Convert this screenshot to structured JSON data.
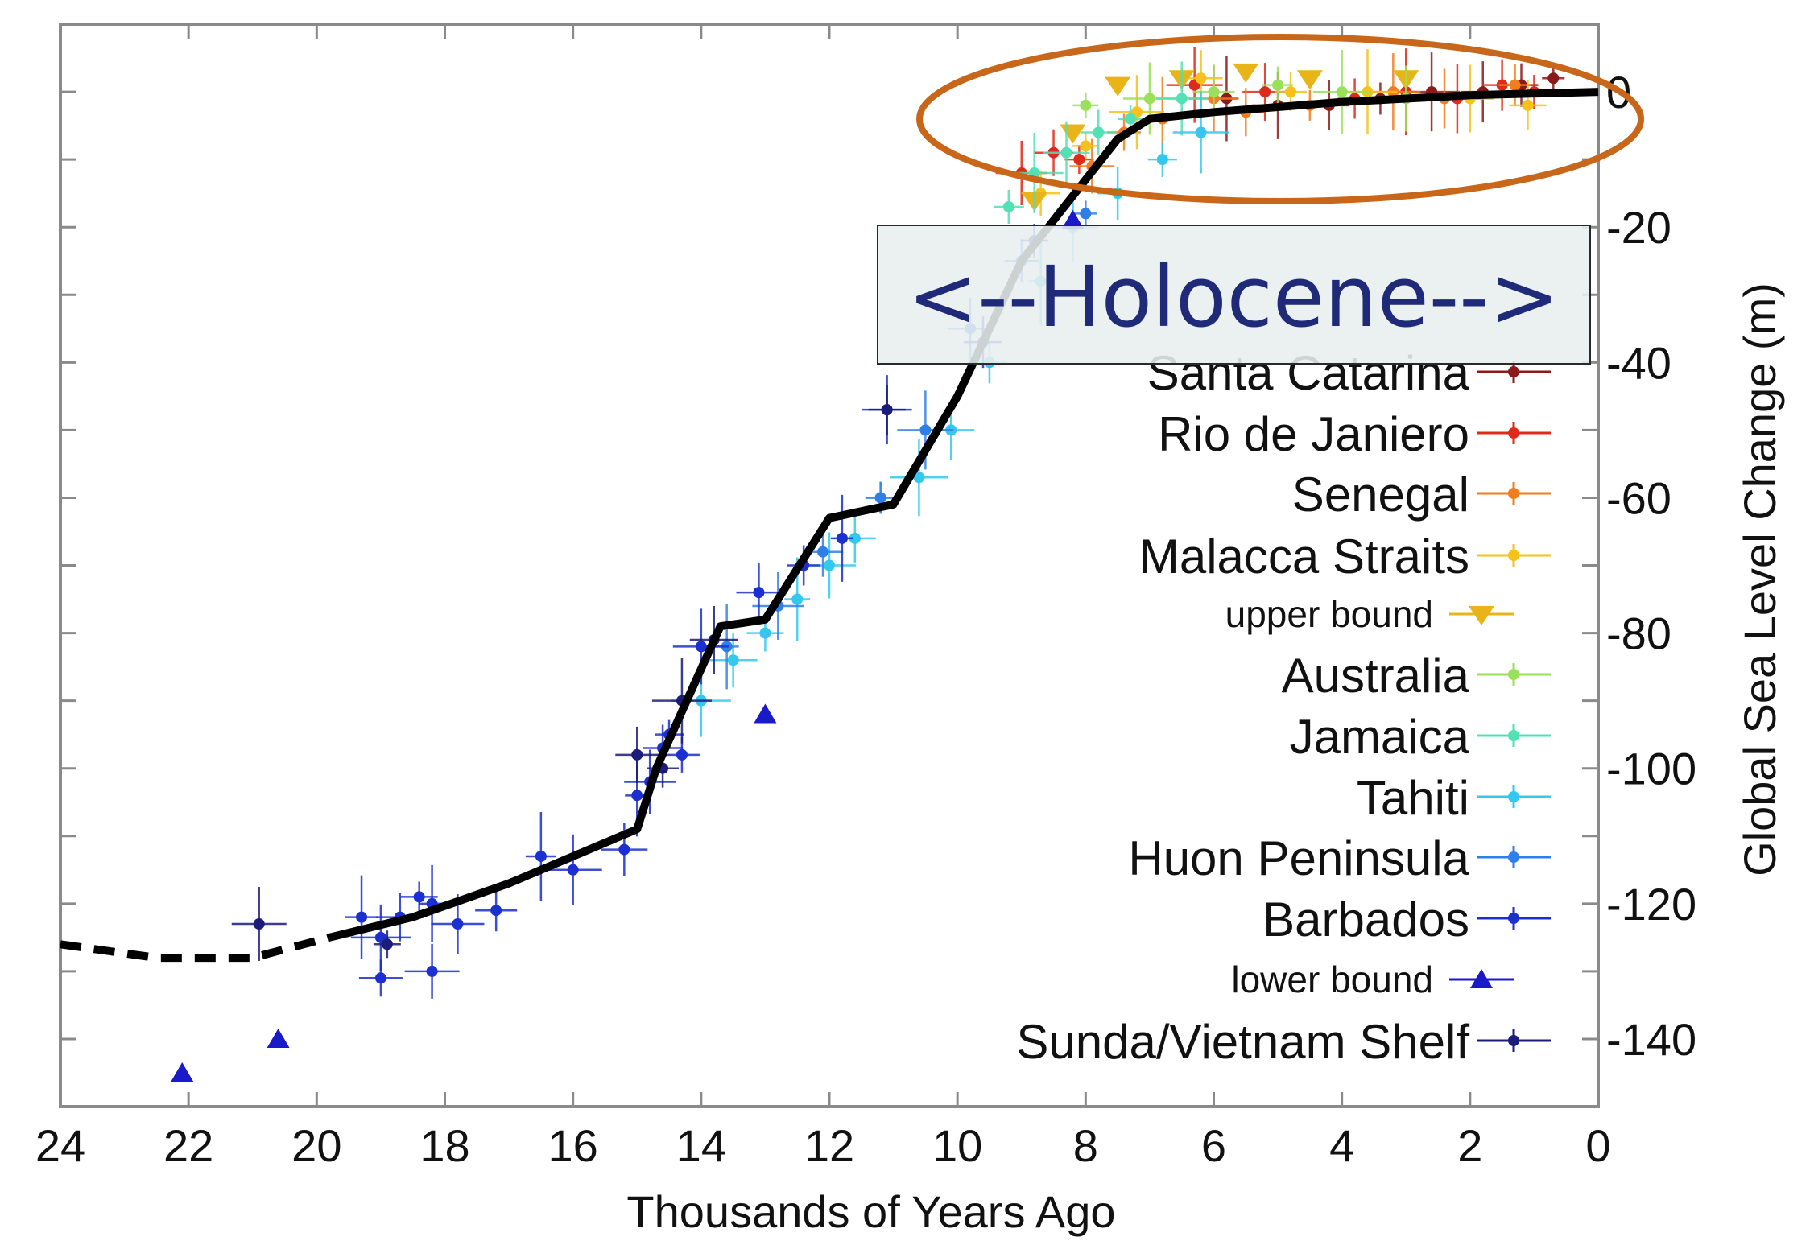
{
  "chart_data": {
    "type": "scatter",
    "xlabel": "Thousands of Years Ago",
    "ylabel": "Global Sea Level Change (m)",
    "xlim": [
      24,
      0
    ],
    "ylim": [
      -150,
      10
    ],
    "x_ticks": [
      24,
      22,
      20,
      18,
      16,
      14,
      12,
      10,
      8,
      6,
      4,
      2,
      0
    ],
    "y_ticks": [
      0,
      -20,
      -40,
      -60,
      -80,
      -100,
      -120,
      -140
    ],
    "y_tick_labels": [
      "0",
      "-20",
      "-40",
      "-60",
      "-80",
      "-100",
      "-120",
      "-140"
    ],
    "y_axis_side": "right",
    "grid": false,
    "legend_position": "right",
    "annotation": {
      "text": "<--Holocene-->",
      "ellipse_color": "#c8661a"
    },
    "reconstruction_line": {
      "color": "#000000",
      "dashed_points": [
        [
          24,
          -126
        ],
        [
          22.5,
          -128
        ],
        [
          21,
          -128
        ],
        [
          19.8,
          -125
        ]
      ],
      "solid_points": [
        [
          19.8,
          -125
        ],
        [
          18.5,
          -122
        ],
        [
          17,
          -117
        ],
        [
          16,
          -113
        ],
        [
          15,
          -109
        ],
        [
          14.7,
          -100
        ],
        [
          13.7,
          -79
        ],
        [
          13,
          -78
        ],
        [
          12,
          -63
        ],
        [
          11,
          -61
        ],
        [
          10,
          -45
        ],
        [
          9,
          -25
        ],
        [
          8,
          -13
        ],
        [
          7.5,
          -7
        ],
        [
          7,
          -4
        ],
        [
          6,
          -3
        ],
        [
          4,
          -1.5
        ],
        [
          2,
          -0.5
        ],
        [
          0,
          0
        ]
      ]
    },
    "series": [
      {
        "name": "Santa Catarina",
        "color": "#8b1a1a",
        "marker": "circle",
        "points": [
          [
            0.7,
            2
          ],
          [
            1.2,
            1
          ],
          [
            1.8,
            0
          ],
          [
            2.6,
            0
          ],
          [
            3.4,
            -1
          ],
          [
            4.2,
            -2
          ],
          [
            5.0,
            -2
          ],
          [
            5.8,
            -1
          ]
        ]
      },
      {
        "name": "Rio de Janiero",
        "color": "#dd2a1a",
        "marker": "circle",
        "points": [
          [
            1.0,
            0
          ],
          [
            1.5,
            1
          ],
          [
            2.2,
            -1
          ],
          [
            3.0,
            0
          ],
          [
            3.8,
            -1
          ],
          [
            5.2,
            0
          ],
          [
            6.3,
            1
          ],
          [
            8.1,
            -10
          ],
          [
            8.5,
            -9
          ],
          [
            9.0,
            -12
          ]
        ]
      },
      {
        "name": "Senegal",
        "color": "#f07d1e",
        "marker": "circle",
        "points": [
          [
            1.3,
            1
          ],
          [
            2.4,
            -1
          ],
          [
            3.2,
            0
          ],
          [
            4.5,
            -2
          ],
          [
            5.5,
            -3
          ],
          [
            6.0,
            -1
          ],
          [
            6.8,
            -4
          ],
          [
            7.4,
            -6
          ],
          [
            7.9,
            -11
          ]
        ]
      },
      {
        "name": "Malacca Straits",
        "color": "#f5c21a",
        "marker": "circle",
        "points": [
          [
            1.1,
            -2
          ],
          [
            2.0,
            -1
          ],
          [
            3.6,
            0
          ],
          [
            4.8,
            0
          ],
          [
            6.2,
            2
          ],
          [
            7.2,
            -3
          ],
          [
            8.0,
            -8
          ],
          [
            8.7,
            -15
          ]
        ]
      },
      {
        "name": "upper bound",
        "color": "#e8b417",
        "marker": "triangle-down",
        "points": [
          [
            3.0,
            2
          ],
          [
            4.5,
            2
          ],
          [
            5.5,
            3
          ],
          [
            6.5,
            2
          ],
          [
            7.5,
            1
          ],
          [
            8.2,
            -6
          ],
          [
            8.8,
            -16
          ]
        ]
      },
      {
        "name": "Australia",
        "color": "#9ae05a",
        "marker": "circle",
        "points": [
          [
            3.0,
            -1
          ],
          [
            4.0,
            0
          ],
          [
            5.0,
            1
          ],
          [
            6.0,
            0
          ],
          [
            7.0,
            -1
          ],
          [
            8.0,
            -2
          ]
        ]
      },
      {
        "name": "Jamaica",
        "color": "#52e0b4",
        "marker": "circle",
        "points": [
          [
            6.5,
            -1
          ],
          [
            7.3,
            -4
          ],
          [
            7.8,
            -6
          ],
          [
            8.3,
            -9
          ],
          [
            8.8,
            -12
          ],
          [
            9.2,
            -17
          ]
        ]
      },
      {
        "name": "Tahiti",
        "color": "#33c8ee",
        "marker": "circle",
        "points": [
          [
            6.2,
            -6
          ],
          [
            6.8,
            -10
          ],
          [
            7.5,
            -15
          ],
          [
            8.2,
            -20
          ],
          [
            8.7,
            -28
          ],
          [
            9.5,
            -40
          ],
          [
            10.1,
            -50
          ],
          [
            10.6,
            -57
          ],
          [
            11.2,
            -60
          ],
          [
            11.6,
            -66
          ],
          [
            12.0,
            -70
          ],
          [
            12.5,
            -75
          ],
          [
            13.0,
            -80
          ],
          [
            13.5,
            -84
          ],
          [
            14.0,
            -90
          ]
        ]
      },
      {
        "name": "Huon Peninsula",
        "color": "#2f7fe8",
        "marker": "circle",
        "points": [
          [
            8.0,
            -18
          ],
          [
            9.0,
            -25
          ],
          [
            9.8,
            -35
          ],
          [
            10.5,
            -50
          ],
          [
            11.2,
            -60
          ],
          [
            12.1,
            -68
          ],
          [
            12.8,
            -76
          ],
          [
            13.6,
            -82
          ]
        ]
      },
      {
        "name": "Barbados",
        "color": "#1c2fd0",
        "marker": "circle",
        "points": [
          [
            8.8,
            -22
          ],
          [
            9.6,
            -37
          ],
          [
            11.1,
            -47
          ],
          [
            11.8,
            -66
          ],
          [
            12.4,
            -70
          ],
          [
            13.1,
            -74
          ],
          [
            14.0,
            -82
          ],
          [
            14.5,
            -95
          ],
          [
            14.6,
            -97
          ],
          [
            14.8,
            -102
          ],
          [
            15.0,
            -104
          ],
          [
            14.3,
            -98
          ],
          [
            15.2,
            -112
          ],
          [
            16.0,
            -115
          ],
          [
            16.5,
            -113
          ],
          [
            17.2,
            -121
          ],
          [
            17.8,
            -123
          ],
          [
            18.2,
            -120
          ],
          [
            18.4,
            -119
          ],
          [
            18.7,
            -122
          ],
          [
            19.0,
            -125
          ],
          [
            19.3,
            -122
          ],
          [
            19.0,
            -131
          ],
          [
            18.2,
            -130
          ]
        ]
      },
      {
        "name": "lower bound",
        "color": "#1a1ac8",
        "marker": "triangle-up",
        "points": [
          [
            8.2,
            -19
          ],
          [
            13.0,
            -92
          ],
          [
            20.6,
            -140
          ],
          [
            22.1,
            -145
          ]
        ]
      },
      {
        "name": "Sunda/Vietnam Shelf",
        "color": "#1c1c7a",
        "marker": "circle",
        "points": [
          [
            11.1,
            -47
          ],
          [
            13.8,
            -81
          ],
          [
            14.3,
            -90
          ],
          [
            14.6,
            -100
          ],
          [
            15.0,
            -98
          ],
          [
            20.9,
            -123
          ],
          [
            18.9,
            -126
          ]
        ]
      }
    ]
  }
}
